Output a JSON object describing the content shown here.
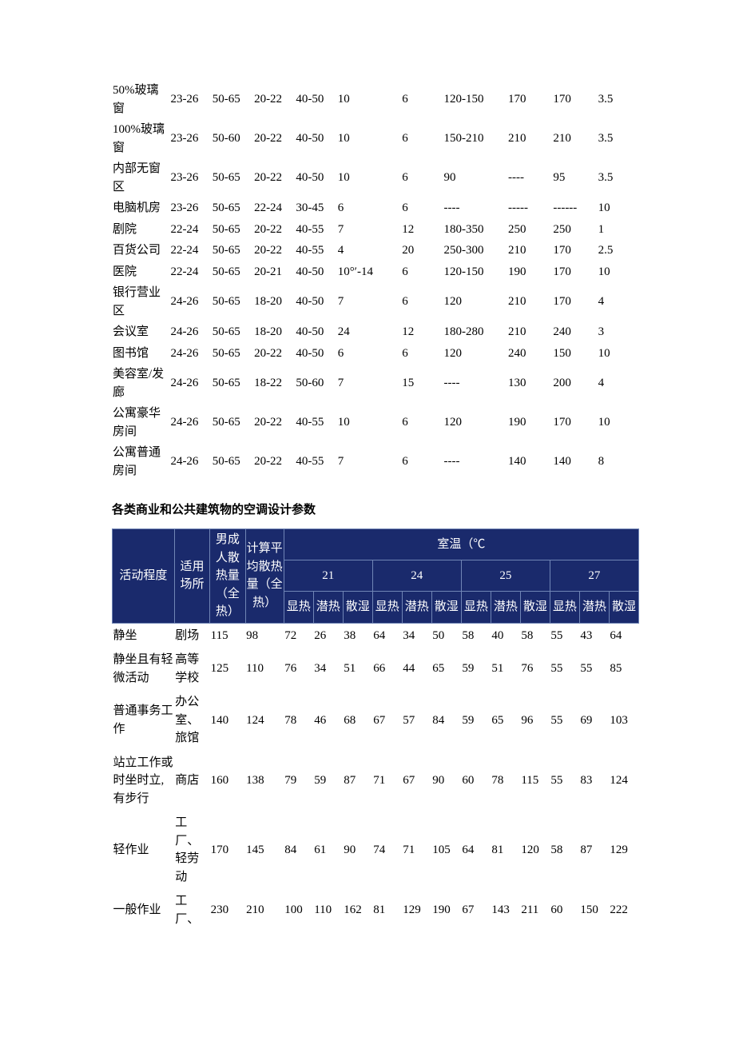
{
  "table1": {
    "col_widths_pct": [
      9,
      6.5,
      6.5,
      6.5,
      6.5,
      10,
      6.5,
      10,
      7,
      7,
      6.5
    ],
    "rows": [
      [
        "50%玻璃窗",
        "23-26",
        "50-65",
        "20-22",
        "40-50",
        "10",
        "6",
        "120-150",
        "170",
        "170",
        "3.5"
      ],
      [
        "100%玻璃窗",
        "23-26",
        "50-60",
        "20-22",
        "40-50",
        "10",
        "6",
        "150-210",
        "210",
        "210",
        "3.5"
      ],
      [
        "内部无窗区",
        "23-26",
        "50-65",
        "20-22",
        "40-50",
        "10",
        "6",
        "90",
        "----",
        "95",
        "3.5"
      ],
      [
        "电脑机房",
        "23-26",
        "50-65",
        "22-24",
        "30-45",
        "6",
        "6",
        "----",
        "-----",
        "------",
        "10"
      ],
      [
        "剧院",
        "22-24",
        "50-65",
        "20-22",
        "40-55",
        "7",
        "12",
        "180-350",
        "250",
        "250",
        "1"
      ],
      [
        "百货公司",
        "22-24",
        "50-65",
        "20-22",
        "40-55",
        "4",
        "20",
        "250-300",
        "210",
        "170",
        "2.5"
      ],
      [
        "医院",
        "22-24",
        "50-65",
        "20-21",
        "40-50",
        "10°′-14",
        "6",
        "120-150",
        "190",
        "170",
        "10"
      ],
      [
        "银行营业区",
        "24-26",
        "50-65",
        "18-20",
        "40-50",
        "7",
        "6",
        "120",
        "210",
        "170",
        "4"
      ],
      [
        "会议室",
        "24-26",
        "50-65",
        "18-20",
        "40-50",
        "24",
        "12",
        "180-280",
        "210",
        "240",
        "3"
      ],
      [
        "图书馆",
        "24-26",
        "50-65",
        "20-22",
        "40-50",
        "6",
        "6",
        "120",
        "240",
        "150",
        "10"
      ],
      [
        "美容室/发廊",
        "24-26",
        "50-65",
        "18-22",
        "50-60",
        "7",
        "15",
        "----",
        "130",
        "200",
        "4"
      ],
      [
        "公寓豪华房间",
        "24-26",
        "50-65",
        "20-22",
        "40-55",
        "10",
        "6",
        "120",
        "190",
        "170",
        "10"
      ],
      [
        "公寓普通房间",
        "24-26",
        "50-65",
        "20-22",
        "40-55",
        "7",
        "6",
        "----",
        "140",
        "140",
        "8"
      ]
    ]
  },
  "section_title": "各类商业和公共建筑物的空调设计参数",
  "table2": {
    "header": {
      "top_span_label": "室温（℃",
      "activity": "活动程度",
      "place": "适用场所",
      "male_heat": "男成人散热量（全热）",
      "avg_heat": "计算平均散热量（全热）",
      "temps": [
        "21",
        "24",
        "25",
        "27"
      ],
      "sub": [
        "显热",
        "潜热",
        "散湿"
      ]
    },
    "col_widths_pct": [
      10.5,
      6,
      6,
      6.5,
      5,
      5,
      5,
      5,
      5,
      5,
      5,
      5,
      5,
      5,
      5,
      5
    ],
    "rows": [
      [
        "静坐",
        "剧场",
        "115",
        "98",
        "72",
        "26",
        "38",
        "64",
        "34",
        "50",
        "58",
        "40",
        "58",
        "55",
        "43",
        "64"
      ],
      [
        "静坐且有轻微活动",
        "高等学校",
        "125",
        "110",
        "76",
        "34",
        "51",
        "66",
        "44",
        "65",
        "59",
        "51",
        "76",
        "55",
        "55",
        "85"
      ],
      [
        "普通事务工作",
        "办公室、旅馆",
        "140",
        "124",
        "78",
        "46",
        "68",
        "67",
        "57",
        "84",
        "59",
        "65",
        "96",
        "55",
        "69",
        "103"
      ],
      [
        "站立工作或时坐时立,有步行",
        "商店",
        "160",
        "138",
        "79",
        "59",
        "87",
        "71",
        "67",
        "90",
        "60",
        "78",
        "115",
        "55",
        "83",
        "124"
      ],
      [
        "轻作业",
        "工厂、轻劳动",
        "170",
        "145",
        "84",
        "61",
        "90",
        "74",
        "71",
        "105",
        "64",
        "81",
        "120",
        "58",
        "87",
        "129"
      ],
      [
        "一般作业",
        "工厂、",
        "230",
        "210",
        "100",
        "110",
        "162",
        "81",
        "129",
        "190",
        "67",
        "143",
        "211",
        "60",
        "150",
        "222"
      ]
    ]
  }
}
